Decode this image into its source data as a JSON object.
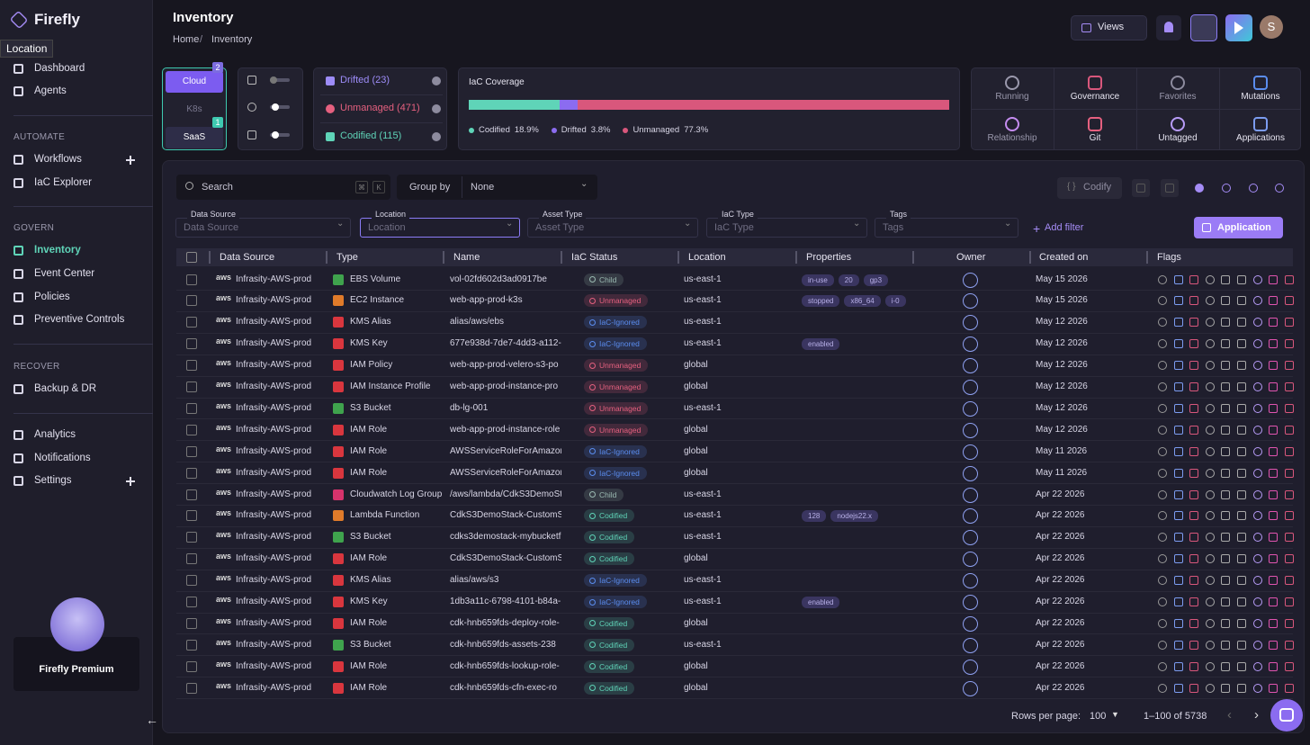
{
  "sidebar": {
    "brand": "Firefly",
    "tooltip": "Location",
    "top": [
      "Dashboard",
      "Agents"
    ],
    "sections": [
      {
        "title": "AUTOMATE",
        "items": [
          "Workflows",
          "IaC Explorer"
        ]
      },
      {
        "title": "GOVERN",
        "items": [
          "Inventory",
          "Event Center",
          "Policies",
          "Preventive Controls"
        ]
      },
      {
        "title": "RECOVER",
        "items": [
          "Backup & DR"
        ]
      }
    ],
    "bottom": [
      "Analytics",
      "Notifications",
      "Settings"
    ],
    "premium": "Firefly Premium"
  },
  "header": {
    "title": "Inventory",
    "breadcrumb": [
      "Home",
      "Inventory"
    ],
    "views": "Views",
    "avatar": "S"
  },
  "providers": [
    {
      "label": "Cloud",
      "badge": 2
    },
    {
      "label": "K8s"
    },
    {
      "label": "SaaS",
      "badge": 1
    }
  ],
  "status_filters": [
    {
      "label": "Drifted (23)",
      "color": "#9d8cf8"
    },
    {
      "label": "Unmanaged (471)",
      "color": "#e5607f"
    },
    {
      "label": "Codified (115)",
      "color": "#5fd4b8"
    }
  ],
  "coverage": {
    "title": "IaC Coverage",
    "segments": [
      {
        "name": "Codified",
        "value": 18.9,
        "value_label": "18.9%",
        "color": "#5fd4b8"
      },
      {
        "name": "Drifted",
        "value": 3.8,
        "value_label": "3.8%",
        "color": "#8b6cf0"
      },
      {
        "name": "Unmanaged",
        "value": 77.3,
        "value_label": "77.3%",
        "color": "#d9577c"
      }
    ]
  },
  "quick_filters": [
    "Running",
    "Governance",
    "Favorites",
    "Mutations",
    "Relationship",
    "Git",
    "Untagged",
    "Applications"
  ],
  "toolbar": {
    "search": "Search",
    "shortcut": [
      "⌘",
      "K"
    ],
    "group_by": "Group by",
    "group_value": "None",
    "codify": "Codify"
  },
  "filters": [
    {
      "label": "Data Source",
      "placeholder": "Data Source"
    },
    {
      "label": "Location",
      "placeholder": "Location"
    },
    {
      "label": "Asset Type",
      "placeholder": "Asset Type"
    },
    {
      "label": "IaC Type",
      "placeholder": "IaC Type"
    },
    {
      "label": "Tags",
      "placeholder": "Tags"
    }
  ],
  "add_filter": "Add filter",
  "application": "Application",
  "table": {
    "columns": [
      "Data Source",
      "Type",
      "Name",
      "IaC Status",
      "Location",
      "Properties",
      "Owner",
      "Created on",
      "Flags"
    ],
    "provider_logo": "aws",
    "rows": [
      {
        "source": "Infrasity-AWS-prod",
        "type": "EBS Volume",
        "type_color": "#3fa34d",
        "name": "vol-02fd602d3ad0917be",
        "status": "Child",
        "status_color": "#9bbab2",
        "location": "us-east-1",
        "properties": [
          "in-use",
          "20",
          "gp3"
        ],
        "created": "May 15 2026"
      },
      {
        "source": "Infrasity-AWS-prod",
        "type": "EC2 Instance",
        "type_color": "#e07b2a",
        "name": "web-app-prod-k3s",
        "status": "Unmanaged",
        "status_color": "#e5607f",
        "location": "us-east-1",
        "properties": [
          "stopped",
          "x86_64",
          "i-0"
        ],
        "created": "May 15 2026"
      },
      {
        "source": "Infrasity-AWS-prod",
        "type": "KMS Alias",
        "type_color": "#d9363e",
        "name": "alias/aws/ebs",
        "status": "IaC-Ignored",
        "status_color": "#5b8def",
        "location": "us-east-1",
        "properties": [],
        "created": "May 12 2026"
      },
      {
        "source": "Infrasity-AWS-prod",
        "type": "KMS Key",
        "type_color": "#d9363e",
        "name": "677e938d-7de7-4dd3-a112-",
        "status": "IaC-Ignored",
        "status_color": "#5b8def",
        "location": "us-east-1",
        "properties": [
          "enabled"
        ],
        "created": "May 12 2026"
      },
      {
        "source": "Infrasity-AWS-prod",
        "type": "IAM Policy",
        "type_color": "#d9363e",
        "name": "web-app-prod-velero-s3-po",
        "status": "Unmanaged",
        "status_color": "#e5607f",
        "location": "global",
        "properties": [],
        "created": "May 12 2026"
      },
      {
        "source": "Infrasity-AWS-prod",
        "type": "IAM Instance Profile",
        "type_color": "#d9363e",
        "name": "web-app-prod-instance-pro",
        "status": "Unmanaged",
        "status_color": "#e5607f",
        "location": "global",
        "properties": [],
        "created": "May 12 2026"
      },
      {
        "source": "Infrasity-AWS-prod",
        "type": "S3 Bucket",
        "type_color": "#3fa34d",
        "name": "db-lg-001",
        "status": "Unmanaged",
        "status_color": "#e5607f",
        "location": "us-east-1",
        "properties": [],
        "created": "May 12 2026"
      },
      {
        "source": "Infrasity-AWS-prod",
        "type": "IAM Role",
        "type_color": "#d9363e",
        "name": "web-app-prod-instance-role",
        "status": "Unmanaged",
        "status_color": "#e5607f",
        "location": "global",
        "properties": [],
        "created": "May 12 2026"
      },
      {
        "source": "Infrasity-AWS-prod",
        "type": "IAM Role",
        "type_color": "#d9363e",
        "name": "AWSServiceRoleForAmazonE",
        "status": "IaC-Ignored",
        "status_color": "#5b8def",
        "location": "global",
        "properties": [],
        "created": "May 11 2026"
      },
      {
        "source": "Infrasity-AWS-prod",
        "type": "IAM Role",
        "type_color": "#d9363e",
        "name": "AWSServiceRoleForAmazonE",
        "status": "IaC-Ignored",
        "status_color": "#5b8def",
        "location": "global",
        "properties": [],
        "created": "May 11 2026"
      },
      {
        "source": "Infrasity-AWS-prod",
        "type": "Cloudwatch Log Group",
        "type_color": "#d6336c",
        "name": "/aws/lambda/CdkS3DemoSta",
        "status": "Child",
        "status_color": "#9bbab2",
        "location": "us-east-1",
        "properties": [],
        "created": "Apr 22 2026"
      },
      {
        "source": "Infrasity-AWS-prod",
        "type": "Lambda Function",
        "type_color": "#e07b2a",
        "name": "CdkS3DemoStack-CustomS",
        "status": "Codified",
        "status_color": "#5fd4b8",
        "location": "us-east-1",
        "properties": [
          "128",
          "nodejs22.x"
        ],
        "created": "Apr 22 2026"
      },
      {
        "source": "Infrasity-AWS-prod",
        "type": "S3 Bucket",
        "type_color": "#3fa34d",
        "name": "cdks3demostack-mybucketf",
        "status": "Codified",
        "status_color": "#5fd4b8",
        "location": "us-east-1",
        "properties": [],
        "created": "Apr 22 2026"
      },
      {
        "source": "Infrasity-AWS-prod",
        "type": "IAM Role",
        "type_color": "#d9363e",
        "name": "CdkS3DemoStack-CustomS",
        "status": "Codified",
        "status_color": "#5fd4b8",
        "location": "global",
        "properties": [],
        "created": "Apr 22 2026"
      },
      {
        "source": "Infrasity-AWS-prod",
        "type": "KMS Alias",
        "type_color": "#d9363e",
        "name": "alias/aws/s3",
        "status": "IaC-Ignored",
        "status_color": "#5b8def",
        "location": "us-east-1",
        "properties": [],
        "created": "Apr 22 2026"
      },
      {
        "source": "Infrasity-AWS-prod",
        "type": "KMS Key",
        "type_color": "#d9363e",
        "name": "1db3a11c-6798-4101-b84a-",
        "status": "IaC-Ignored",
        "status_color": "#5b8def",
        "location": "us-east-1",
        "properties": [
          "enabled"
        ],
        "created": "Apr 22 2026"
      },
      {
        "source": "Infrasity-AWS-prod",
        "type": "IAM Role",
        "type_color": "#d9363e",
        "name": "cdk-hnb659fds-deploy-role-",
        "status": "Codified",
        "status_color": "#5fd4b8",
        "location": "global",
        "properties": [],
        "created": "Apr 22 2026"
      },
      {
        "source": "Infrasity-AWS-prod",
        "type": "S3 Bucket",
        "type_color": "#3fa34d",
        "name": "cdk-hnb659fds-assets-238",
        "status": "Codified",
        "status_color": "#5fd4b8",
        "location": "us-east-1",
        "properties": [],
        "created": "Apr 22 2026"
      },
      {
        "source": "Infrasity-AWS-prod",
        "type": "IAM Role",
        "type_color": "#d9363e",
        "name": "cdk-hnb659fds-lookup-role-",
        "status": "Codified",
        "status_color": "#5fd4b8",
        "location": "global",
        "properties": [],
        "created": "Apr 22 2026"
      },
      {
        "source": "Infrasity-AWS-prod",
        "type": "IAM Role",
        "type_color": "#d9363e",
        "name": "cdk-hnb659fds-cfn-exec-ro",
        "status": "Codified",
        "status_color": "#5fd4b8",
        "location": "global",
        "properties": [],
        "created": "Apr 22 2026"
      }
    ]
  },
  "pagination": {
    "label": "Rows per page:",
    "per_page": "100",
    "range": "1–100 of 5738"
  }
}
